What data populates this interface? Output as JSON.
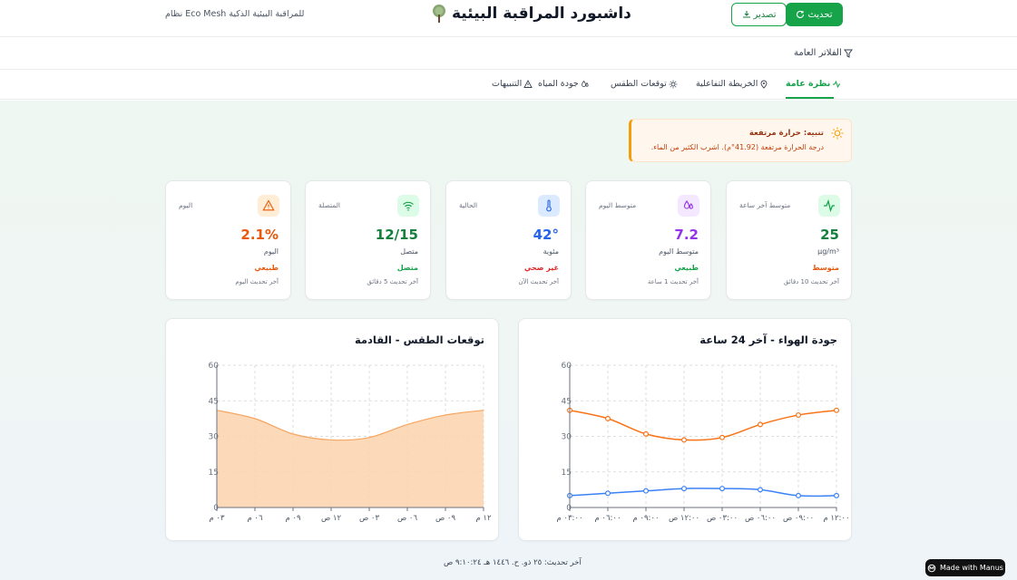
{
  "header": {
    "title": "داشبورد المراقبة البيئية",
    "tagline": "نظام Eco Mesh للمراقبة البيئية الذكية",
    "export_label": "تصدير",
    "refresh_label": "تحديث"
  },
  "filters": {
    "label": "الفلاتر العامة"
  },
  "tabs": [
    {
      "label": "نظرة عامة",
      "icon": "activity-icon",
      "active": true
    },
    {
      "label": "الخريطة التفاعلية",
      "icon": "map-pin-icon",
      "active": false
    },
    {
      "label": "توقعات الطقس",
      "icon": "sun-icon",
      "active": false
    },
    {
      "label": "جودة المياه",
      "icon": "droplets-icon",
      "active": false
    },
    {
      "label": "التنبيهات",
      "icon": "alert-triangle-icon",
      "active": false
    }
  ],
  "alert": {
    "title": "تنبيه: حرارة مرتفعة",
    "message": "درجة الحرارة مرتفعة (41.92°م). اشرب الكثير من الماء.",
    "icon": "sun-icon"
  },
  "cards": [
    {
      "heading": "متوسط آخر ساعة",
      "value": "25",
      "unit": "µg/m³",
      "status": "متوسط",
      "updated": "آخر تحديث 10 دقائق",
      "icon": "activity-icon",
      "color": "#16a34a",
      "bg": "#dcfce7",
      "status_color": "#ea580c"
    },
    {
      "heading": "متوسط اليوم",
      "value": "7.2",
      "unit": "متوسط اليوم",
      "status": "طبيعي",
      "updated": "آخر تحديث 1 ساعة",
      "icon": "droplets-icon",
      "color": "#9333ea",
      "bg": "#f3e8ff",
      "status_color": "#16a34a"
    },
    {
      "heading": "الحالية",
      "value": "42°",
      "unit": "مئوية",
      "status": "غير صحي",
      "updated": "آخر تحديث الآن",
      "icon": "thermometer-icon",
      "color": "#2563eb",
      "bg": "#dbeafe",
      "status_color": "#dc2626"
    },
    {
      "heading": "المتصلة",
      "value": "12/15",
      "unit": "متصل",
      "status": "متصل",
      "updated": "آخر تحديث 5 دقائق",
      "icon": "wifi-icon",
      "color": "#16a34a",
      "bg": "#dcfce7",
      "status_color": "#16a34a"
    },
    {
      "heading": "اليوم",
      "value": "2.1%",
      "unit": "اليوم",
      "status": "طبيعي",
      "updated": "آخر تحديث اليوم",
      "icon": "alert-triangle-icon",
      "color": "#ea580c",
      "bg": "#ffedd5",
      "status_color": "#ea580c"
    }
  ],
  "chart_data": [
    {
      "type": "line",
      "title": "جودة الهواء - آخر 24 ساعة",
      "categories": [
        "١٢:٠٠ م",
        "٠٩:٠٠ ص",
        "٠٦:٠٠ ص",
        "٠٣:٠٠ ص",
        "١٢:٠٠ ص",
        "٠٩:٠٠ م",
        "٠٦:٠٠ م",
        "٠٣:٠٠ م"
      ],
      "series": [
        {
          "values": [
            41,
            39,
            35,
            29.5,
            28.5,
            31,
            37.5,
            41
          ],
          "color": "#f97316"
        },
        {
          "values": [
            5,
            5,
            7.5,
            8,
            8,
            7,
            6,
            5
          ],
          "color": "#3b82f6"
        }
      ],
      "ylim": [
        0,
        60
      ],
      "yticks": [
        0,
        15,
        30,
        45,
        60
      ],
      "grid": true
    },
    {
      "type": "area",
      "title": "توقعات الطقس - القادمة",
      "categories": [
        "١٢ م",
        "٠٩ ص",
        "٠٦ ص",
        "٠٣ ص",
        "١٢ ص",
        "٠٩ م",
        "٠٦ م",
        "٠٣ م"
      ],
      "series": [
        {
          "values": [
            41,
            39,
            35,
            29.5,
            28.5,
            31,
            37.5,
            41
          ],
          "color": "#f6a55f"
        }
      ],
      "ylim": [
        0,
        60
      ],
      "yticks": [
        0,
        15,
        30,
        45,
        60
      ],
      "grid": true
    }
  ],
  "footer": {
    "last_update": "آخر تحديث: ٢٥ ذو. ح. ١٤٤٦ هـ ٩:١٠:٢٤ ص"
  },
  "badge": {
    "label": "Made with Manus"
  }
}
